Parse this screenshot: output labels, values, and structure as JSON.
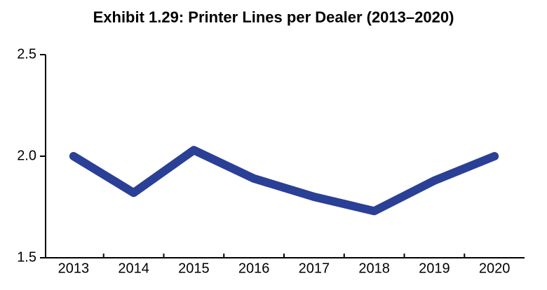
{
  "chart_data": {
    "type": "line",
    "title": "Exhibit 1.29: Printer Lines per Dealer (2013–2020)",
    "categories": [
      "2013",
      "2014",
      "2015",
      "2016",
      "2017",
      "2018",
      "2019",
      "2020"
    ],
    "values": [
      2.0,
      1.82,
      2.03,
      1.89,
      1.8,
      1.73,
      1.88,
      2.0
    ],
    "color": "#2a3f96",
    "ylim": [
      1.5,
      2.5
    ],
    "yticks": [
      1.5,
      {
        "value": 2,
        "label": "2.0"
      },
      2.5
    ],
    "grid": false
  }
}
